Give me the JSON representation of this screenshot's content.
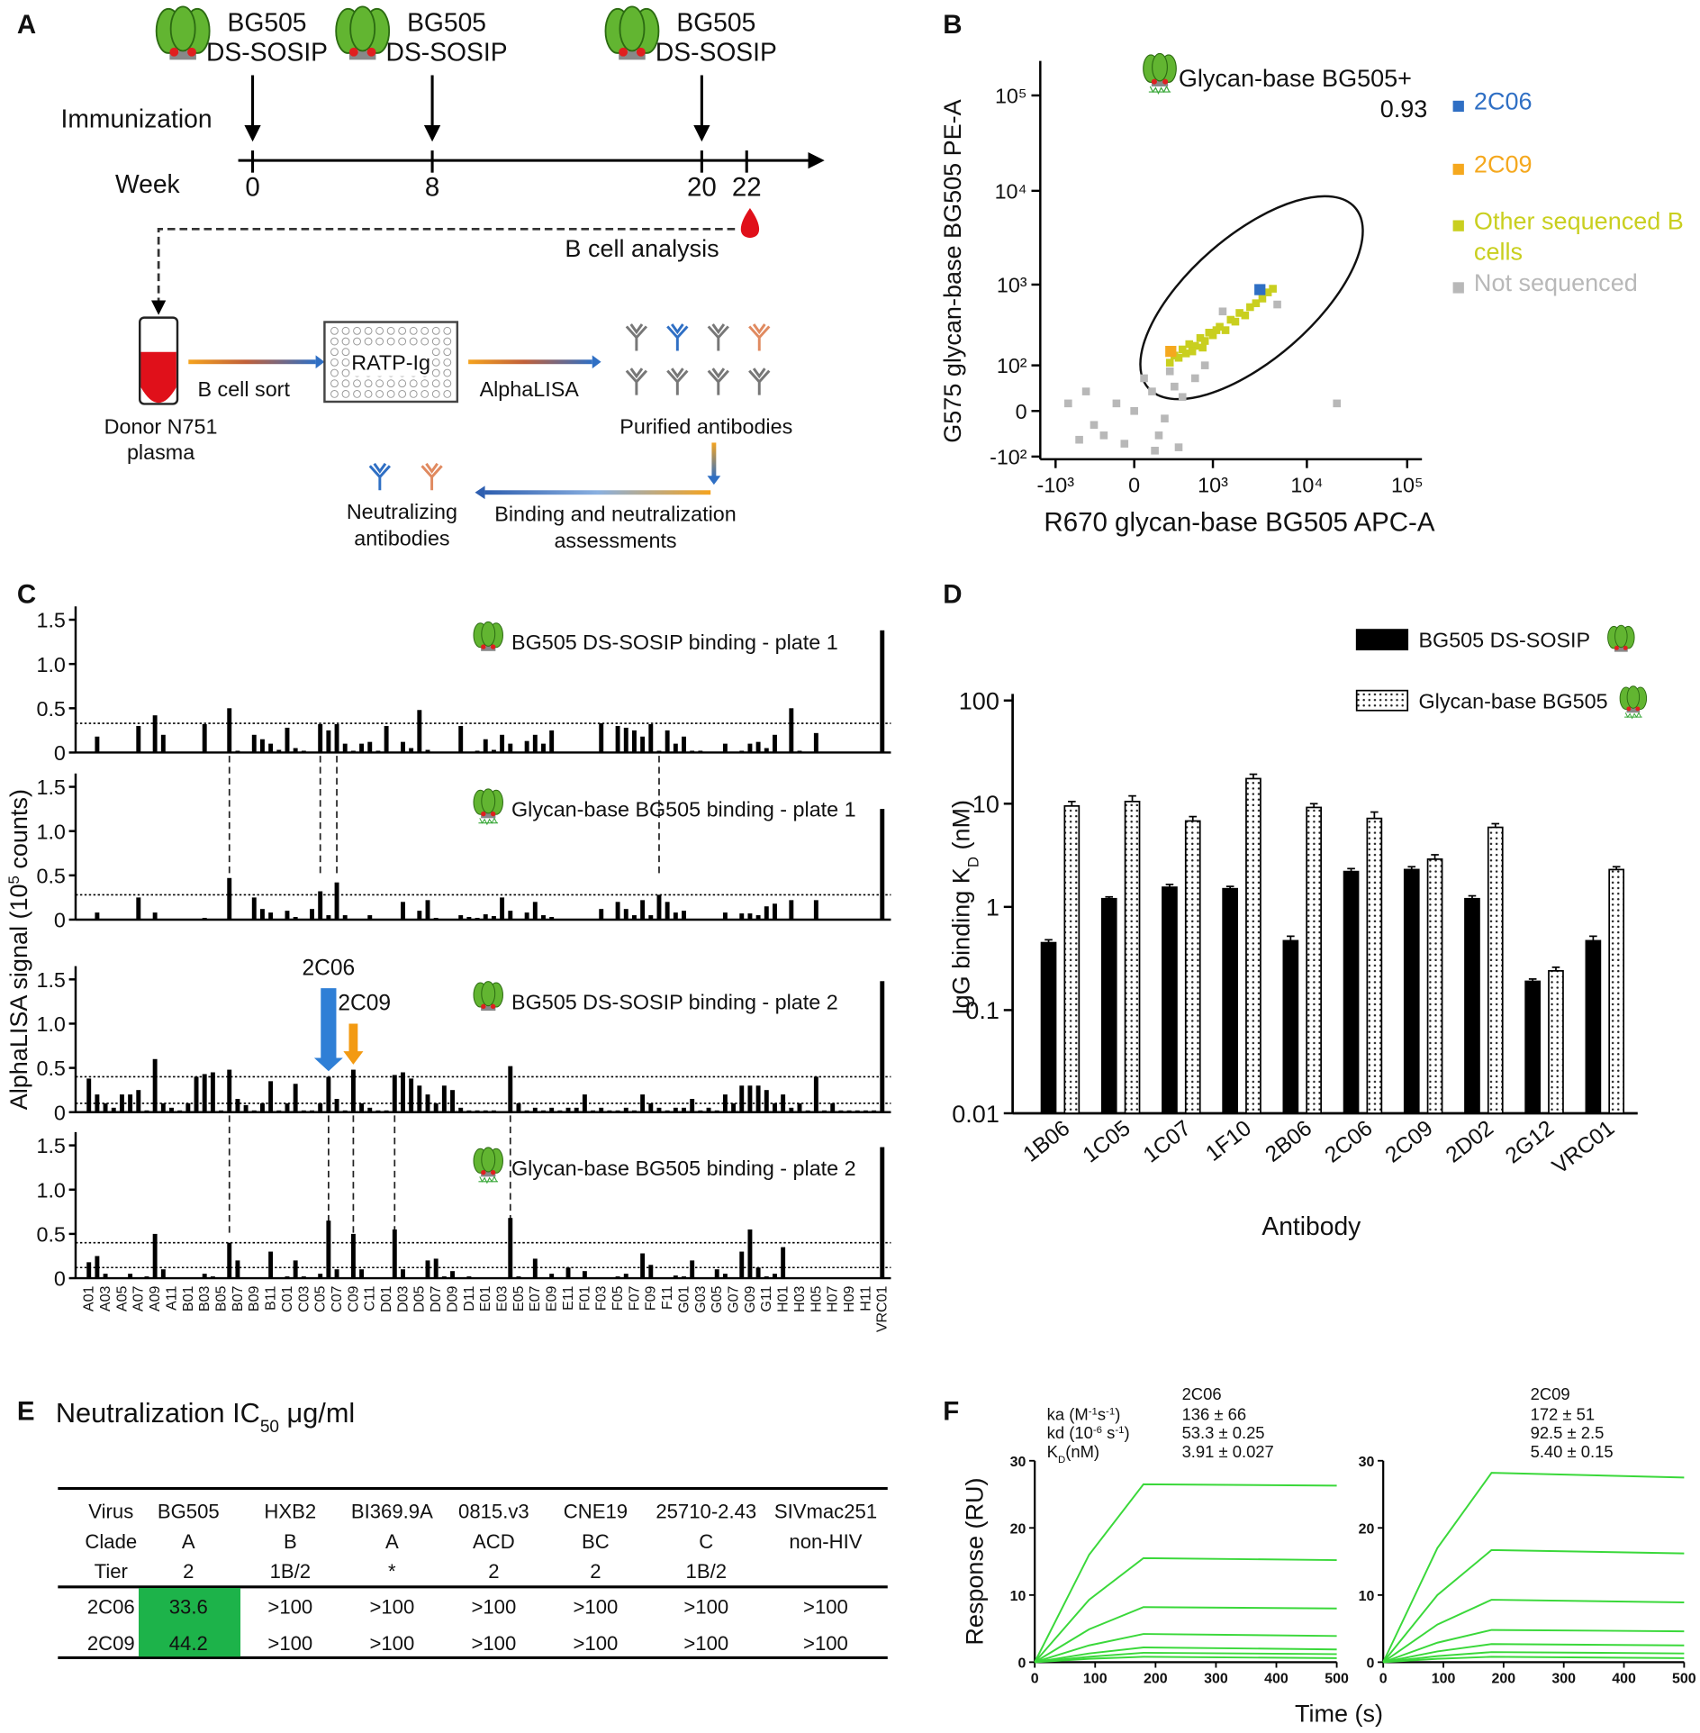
{
  "panel_labels": [
    "A",
    "B",
    "C",
    "D",
    "E",
    "F"
  ],
  "scheme": {
    "immunizations": [
      [
        "BG505",
        "DS-SOSIP"
      ],
      [
        "BG505",
        "DS-SOSIP"
      ],
      [
        "BG505",
        "DS-SOSIP"
      ]
    ],
    "row_label": "Immunization",
    "week_label": "Week",
    "weeks": [
      0,
      8,
      20,
      22
    ],
    "analysis": "B cell analysis",
    "donor": [
      "Donor N751",
      "plasma"
    ],
    "sort": "B cell sort",
    "plate": "RATP-Ig",
    "assay": "AlphaLISA",
    "purified": "Purified antibodies",
    "assessment": [
      "Binding and neutralization",
      "assessments"
    ],
    "neutralizing": [
      "Neutralizing",
      "antibodies"
    ]
  },
  "chart_data": [
    {
      "type": "scatter",
      "xlabel": "R670 glycan-base BG505 APC-A",
      "ylabel": "G575 glycan-base BG505 PE-A",
      "xscale": "biexponential",
      "yscale": "biexponential",
      "xlim": [
        -1500,
        140000
      ],
      "ylim": [
        -110,
        230000
      ],
      "xticks": [
        {
          "value": -1000,
          "label": "-10³"
        },
        0,
        {
          "value": 1000,
          "label": "10³"
        },
        {
          "value": 10000,
          "label": "10⁴"
        },
        {
          "value": 100000,
          "label": "10⁵"
        }
      ],
      "yticks": [
        {
          "value": -100,
          "label": "-10²"
        },
        0,
        {
          "value": 100,
          "label": "10²"
        },
        {
          "value": 1000,
          "label": "10³"
        },
        {
          "value": 10000,
          "label": "10⁴"
        },
        {
          "value": 100000,
          "label": "10⁵"
        }
      ],
      "gate": {
        "label": "Glycan-base BG505+",
        "value": 0.93
      },
      "legend": "right",
      "series": [
        {
          "name": "2C06",
          "color": "#2f6fc4",
          "x": [
            3300
          ],
          "y": [
            880
          ]
        },
        {
          "name": "2C09",
          "color": "#f5a81e",
          "x": [
            260
          ],
          "y": [
            160
          ]
        },
        {
          "name": "Other sequenced B cells",
          "color": "#c9cf1f",
          "x": [
            250,
            300,
            350,
            400,
            450,
            500,
            600,
            700,
            800,
            900,
            1000,
            1200,
            1400,
            1600,
            1800,
            2000,
            2300,
            2600,
            3000,
            3500,
            4000,
            4500,
            550,
            750,
            1100
          ],
          "y": [
            110,
            140,
            130,
            170,
            150,
            200,
            190,
            240,
            220,
            280,
            260,
            330,
            300,
            400,
            380,
            480,
            450,
            560,
            620,
            700,
            820,
            900,
            160,
            180,
            300
          ]
        },
        {
          "name": "Not sequenced",
          "color": "#b8b8b8",
          "x": [
            -300,
            -100,
            0,
            100,
            200,
            -500,
            300,
            50,
            -200,
            400,
            150,
            -50,
            250,
            600,
            800,
            -700,
            -400,
            120,
            350,
            1300,
            5000,
            20000
          ],
          "y": [
            -20,
            10,
            0,
            30,
            -10,
            -50,
            40,
            60,
            -40,
            20,
            -40,
            -60,
            80,
            60,
            100,
            10,
            30,
            -80,
            -70,
            500,
            600,
            10
          ]
        }
      ]
    },
    {
      "type": "bar",
      "ylabel": {
        "text": "AlphaLISA signal (10",
        "sup": "5",
        "tail": " counts)"
      },
      "ylim": [
        0,
        1.65
      ],
      "yticks": [
        0,
        0.5,
        {
          "value": 1,
          "label": "1.0"
        },
        1.5
      ],
      "color": "#000000",
      "categories": [
        "A01",
        null,
        "A03",
        null,
        "A05",
        null,
        "A07",
        null,
        "A09",
        null,
        "A11",
        null,
        "B01",
        null,
        "B03",
        null,
        "B05",
        null,
        "B07",
        null,
        "B09",
        null,
        "B11",
        null,
        "C01",
        null,
        "C03",
        null,
        "C05",
        null,
        "C07",
        null,
        "C09",
        null,
        "C11",
        null,
        "D01",
        null,
        "D03",
        null,
        "D05",
        null,
        "D07",
        null,
        "D09",
        null,
        "D11",
        null,
        "E01",
        null,
        "E03",
        null,
        "E05",
        null,
        "E07",
        null,
        "E09",
        null,
        "E11",
        null,
        "F01",
        null,
        "F03",
        null,
        "F05",
        null,
        "F07",
        null,
        "F09",
        null,
        "F11",
        null,
        "G01",
        null,
        "G03",
        null,
        "G05",
        null,
        "G07",
        null,
        "G09",
        null,
        "G11",
        null,
        "H01",
        null,
        "H03",
        null,
        "H05",
        null,
        "H07",
        null,
        "H09",
        null,
        "H11",
        null,
        "VRC01"
      ],
      "panels": [
        {
          "title": "BG505 DS-SOSIP binding - plate 1",
          "thresholds": [
            0.33
          ],
          "values": [
            0,
            0.18,
            0,
            0,
            0,
            0,
            0.3,
            0,
            0.42,
            0.2,
            0,
            0,
            0,
            0,
            0.32,
            0,
            0,
            0.5,
            0.02,
            0,
            0.2,
            0.15,
            0.1,
            0.03,
            0.28,
            0.05,
            0.02,
            0,
            0.32,
            0.25,
            0.32,
            0.1,
            0.02,
            0.1,
            0.12,
            0.02,
            0.3,
            0,
            0.12,
            0.05,
            0.48,
            0.03,
            0,
            0,
            0,
            0.3,
            0,
            0.02,
            0.15,
            0.03,
            0.2,
            0.1,
            0,
            0.13,
            0.2,
            0.1,
            0.25,
            0,
            0,
            0,
            0,
            0,
            0.33,
            0,
            0.3,
            0.28,
            0.25,
            0.18,
            0.32,
            0.02,
            0.25,
            0.1,
            0.18,
            0.02,
            0.02,
            0,
            0,
            0.1,
            0,
            0.02,
            0.1,
            0.12,
            0.05,
            0.2,
            0,
            0.5,
            0.02,
            0,
            0.22,
            0,
            0,
            0,
            0,
            0,
            0,
            0,
            1.38
          ]
        },
        {
          "title": "Glycan-base BG505 binding - plate 1",
          "thresholds": [
            0.28
          ],
          "values": [
            0,
            0.08,
            0,
            0,
            0,
            0,
            0.25,
            0,
            0.08,
            0,
            0,
            0,
            0,
            0,
            0.02,
            0,
            0,
            0.47,
            0,
            0,
            0.25,
            0.12,
            0.08,
            0,
            0.1,
            0.03,
            0,
            0.12,
            0.32,
            0.05,
            0.42,
            0.05,
            0,
            0,
            0.05,
            0,
            0,
            0,
            0.2,
            0,
            0.1,
            0.22,
            0.02,
            0,
            0,
            0.05,
            0.03,
            0.02,
            0.06,
            0.04,
            0.25,
            0.1,
            0,
            0.08,
            0.2,
            0.05,
            0.03,
            0,
            0,
            0,
            0,
            0,
            0.12,
            0,
            0.2,
            0.12,
            0.05,
            0.22,
            0.05,
            0.28,
            0.2,
            0.08,
            0.1,
            0,
            0,
            0,
            0,
            0.08,
            0,
            0.07,
            0.07,
            0.05,
            0.15,
            0.18,
            0,
            0.22,
            0,
            0,
            0.22,
            0,
            0,
            0,
            0,
            0,
            0,
            0,
            1.25
          ]
        },
        {
          "title": "BG505 DS-SOSIP binding - plate 2",
          "thresholds": [
            0.4,
            0.1
          ],
          "values": [
            0.38,
            0.2,
            0.1,
            0.05,
            0.2,
            0.2,
            0.25,
            0.02,
            0.6,
            0.1,
            0.05,
            0.02,
            0.1,
            0.4,
            0.43,
            0.45,
            0.02,
            0.48,
            0.15,
            0.08,
            0.02,
            0.1,
            0.35,
            0.02,
            0.1,
            0.32,
            0.02,
            0.02,
            0.1,
            0.4,
            0.15,
            0.02,
            0.48,
            0.1,
            0.05,
            0.02,
            0.02,
            0.42,
            0.45,
            0.38,
            0.3,
            0.2,
            0.1,
            0.3,
            0.25,
            0.05,
            0.02,
            0.02,
            0.02,
            0.02,
            0,
            0.52,
            0.1,
            0.02,
            0.05,
            0.02,
            0.05,
            0.02,
            0.05,
            0.05,
            0.2,
            0.02,
            0.05,
            0.02,
            0.02,
            0.05,
            0.02,
            0.2,
            0.1,
            0.05,
            0.02,
            0.05,
            0.05,
            0.15,
            0.02,
            0.05,
            0.02,
            0.2,
            0.1,
            0.3,
            0.3,
            0.3,
            0.25,
            0.1,
            0.2,
            0.05,
            0.1,
            0.02,
            0.4,
            0.02,
            0.1,
            0.02,
            0.02,
            0.02,
            0.02,
            0.02,
            1.48
          ]
        },
        {
          "title": "Glycan-base BG505 binding - plate 2",
          "thresholds": [
            0.4,
            0.12
          ],
          "values": [
            0.18,
            0.25,
            0.05,
            0,
            0,
            0.05,
            0,
            0.02,
            0.5,
            0.1,
            0,
            0,
            0,
            0,
            0.05,
            0.02,
            0,
            0.4,
            0.2,
            0,
            0,
            0,
            0.3,
            0,
            0.02,
            0.2,
            0.02,
            0,
            0.05,
            0.65,
            0.1,
            0,
            0.5,
            0.1,
            0,
            0,
            0,
            0.55,
            0.1,
            0,
            0,
            0.2,
            0.22,
            0.02,
            0.08,
            0,
            0.02,
            0,
            0,
            0,
            0,
            0.68,
            0.02,
            0,
            0.22,
            0,
            0.05,
            0,
            0.12,
            0,
            0.08,
            0,
            0,
            0,
            0.02,
            0.05,
            0,
            0.28,
            0.15,
            0,
            0,
            0.03,
            0.02,
            0.2,
            0,
            0,
            0.1,
            0.05,
            0,
            0.3,
            0.55,
            0.12,
            0.02,
            0.05,
            0.35,
            0,
            0,
            0,
            0,
            0,
            0,
            0,
            0,
            0,
            0,
            0,
            1.48
          ]
        }
      ],
      "annotations": [
        {
          "text": "2C06",
          "color": "#2f7fd6"
        },
        {
          "text": "2C09",
          "color": "#f39a12"
        }
      ]
    },
    {
      "type": "bar",
      "log": true,
      "ylabel": {
        "text": "IgG binding K",
        "sub": "D",
        "tail": " (nM)"
      },
      "xlabel": "Antibody",
      "categories": [
        "1B06",
        "1C05",
        "1C07",
        "1F10",
        "2B06",
        "2C06",
        "2C09",
        "2D02",
        "2G12",
        "VRC01"
      ],
      "category_colors": [
        "#111111",
        "#111111",
        "#111111",
        "#111111",
        "#111111",
        "#2f8fe0",
        "#f5a623",
        "#111111",
        "#111111",
        "#111111"
      ],
      "ylim": [
        0.01,
        100
      ],
      "yticks": [
        0.01,
        0.1,
        1,
        10,
        100
      ],
      "legend": "top-right",
      "series": [
        {
          "name": "BG505 DS-SOSIP",
          "color": "#000000",
          "values": [
            0.45,
            1.2,
            1.55,
            1.5,
            0.47,
            2.2,
            2.3,
            1.2,
            0.19,
            0.47
          ],
          "errors": [
            0.03,
            0.05,
            0.1,
            0.08,
            0.05,
            0.15,
            0.15,
            0.08,
            0.01,
            0.05
          ]
        },
        {
          "name": "Glycan-base BG505",
          "color": "#ffffff",
          "pattern": "dots",
          "values": [
            9.5,
            10.5,
            6.8,
            17.5,
            9.2,
            7.2,
            2.9,
            5.9,
            0.24,
            2.3
          ],
          "errors": [
            1,
            1.4,
            0.7,
            1.8,
            0.8,
            1.1,
            0.3,
            0.5,
            0.02,
            0.15
          ]
        }
      ]
    },
    {
      "type": "line",
      "title": "2C06",
      "title_color": "#2f8fe0",
      "ylabel": "Response (RU)",
      "xlabel": "Time (s)",
      "xlim": [
        0,
        500
      ],
      "ylim": [
        0,
        30
      ],
      "xticks": [
        0,
        100,
        200,
        300,
        400,
        500
      ],
      "yticks": [
        0,
        10,
        20,
        30
      ],
      "color": "#3ad83a",
      "param_labels": [
        [
          {
            "t": "ka (M"
          },
          {
            "sup": "-1"
          },
          {
            "t": "s"
          },
          {
            "sup": "-1"
          },
          {
            "t": ")"
          }
        ],
        [
          {
            "t": "kd (10"
          },
          {
            "sup": "-6"
          },
          {
            "t": " s"
          },
          {
            "sup": "-1"
          },
          {
            "t": ")"
          }
        ],
        [
          {
            "t": "K"
          },
          {
            "sub": "D"
          },
          {
            "t": "(nM)"
          }
        ]
      ],
      "param_values": [
        "136 ± 66",
        "53.3 ± 0.25",
        "3.91 ± 0.027"
      ],
      "x": [
        0,
        90,
        180,
        500
      ],
      "series": [
        {
          "values": [
            0,
            16,
            26.5,
            26.3
          ]
        },
        {
          "values": [
            0,
            9.3,
            15.5,
            15.2
          ]
        },
        {
          "values": [
            0,
            4.9,
            8.2,
            8.0
          ]
        },
        {
          "values": [
            0,
            2.5,
            4.2,
            3.9
          ]
        },
        {
          "values": [
            0,
            1.3,
            2.2,
            1.9
          ]
        },
        {
          "values": [
            0,
            0.8,
            1.4,
            1.2
          ]
        },
        {
          "values": [
            0,
            0.5,
            0.8,
            0.6
          ]
        }
      ]
    },
    {
      "type": "line",
      "title": "2C09",
      "title_color": "#f5a623",
      "xlim": [
        0,
        500
      ],
      "ylim": [
        0,
        30
      ],
      "xticks": [
        0,
        100,
        200,
        300,
        400,
        500
      ],
      "yticks": [
        0,
        10,
        20,
        30
      ],
      "color": "#3ad83a",
      "param_values": [
        "172 ± 51",
        "92.5 ± 2.5",
        "5.40 ± 0.15"
      ],
      "x": [
        0,
        90,
        180,
        500
      ],
      "series": [
        {
          "values": [
            0,
            17,
            28.2,
            27.5
          ]
        },
        {
          "values": [
            0,
            10,
            16.7,
            16.2
          ]
        },
        {
          "values": [
            0,
            5.6,
            9.3,
            8.9
          ]
        },
        {
          "values": [
            0,
            2.9,
            4.8,
            4.6
          ]
        },
        {
          "values": [
            0,
            1.6,
            2.7,
            2.5
          ]
        },
        {
          "values": [
            0,
            0.9,
            1.5,
            1.3
          ]
        },
        {
          "values": [
            0,
            0.5,
            0.8,
            0.6
          ]
        }
      ]
    }
  ],
  "table": {
    "title": {
      "text": "Neutralization IC",
      "sub": "50",
      "tail": " μg/ml"
    },
    "header_rows": [
      [
        "Virus",
        "BG505",
        "HXB2",
        "BI369.9A",
        "0815.v3",
        "CNE19",
        "25710-2.43",
        "SIVmac251"
      ],
      [
        "Clade",
        "A",
        "B",
        "A",
        "ACD",
        "BC",
        "C",
        "non-HIV"
      ],
      [
        "Tier",
        2,
        "1B/2",
        "*",
        2,
        2,
        "1B/2"
      ]
    ],
    "rows": [
      [
        "2C06",
        33.6,
        ">100",
        ">100",
        ">100",
        ">100",
        ">100",
        ">100"
      ],
      [
        "2C09",
        44.2,
        ">100",
        ">100",
        ">100",
        ">100",
        ">100",
        ">100"
      ]
    ],
    "row_colors": [
      "#2f8fe0",
      "#f5a623"
    ],
    "highlight_color": "#1db34a"
  }
}
